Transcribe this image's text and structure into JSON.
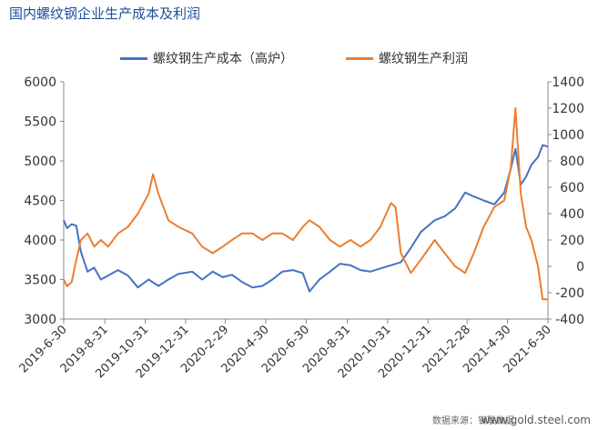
{
  "chart_data": {
    "type": "line",
    "title": "国内螺纹钢企业生产成本及利润",
    "x_ticks": [
      "2019-6-30",
      "2019-8-31",
      "2019-10-31",
      "2019-12-31",
      "2020-2-29",
      "2020-4-30",
      "2020-6-30",
      "2020-8-31",
      "2020-10-31",
      "2020-12-31",
      "2021-2-28",
      "2021-4-30",
      "2021-6-30"
    ],
    "y_left": {
      "min": 3000,
      "max": 6000,
      "ticks": [
        3000,
        3500,
        4000,
        4500,
        5000,
        5500,
        6000
      ]
    },
    "y_right": {
      "min": -400,
      "max": 1400,
      "ticks": [
        -400,
        -200,
        0,
        200,
        400,
        600,
        800,
        1000,
        1200,
        1400
      ]
    },
    "series": [
      {
        "name": "螺纹钢生产成本（高炉）",
        "axis": "left",
        "color": "#4472c4",
        "points": [
          [
            "2019-6-30",
            4250
          ],
          [
            "2019-7-5",
            4150
          ],
          [
            "2019-7-12",
            4200
          ],
          [
            "2019-7-19",
            4180
          ],
          [
            "2019-7-26",
            3850
          ],
          [
            "2019-8-5",
            3600
          ],
          [
            "2019-8-15",
            3650
          ],
          [
            "2019-8-25",
            3500
          ],
          [
            "2019-9-5",
            3550
          ],
          [
            "2019-9-20",
            3620
          ],
          [
            "2019-10-5",
            3550
          ],
          [
            "2019-10-20",
            3400
          ],
          [
            "2019-11-5",
            3500
          ],
          [
            "2019-11-20",
            3420
          ],
          [
            "2019-12-5",
            3500
          ],
          [
            "2019-12-20",
            3570
          ],
          [
            "2020-1-10",
            3600
          ],
          [
            "2020-1-25",
            3500
          ],
          [
            "2020-2-10",
            3600
          ],
          [
            "2020-2-25",
            3530
          ],
          [
            "2020-3-10",
            3560
          ],
          [
            "2020-3-25",
            3470
          ],
          [
            "2020-4-10",
            3400
          ],
          [
            "2020-4-25",
            3420
          ],
          [
            "2020-5-10",
            3500
          ],
          [
            "2020-5-25",
            3600
          ],
          [
            "2020-6-10",
            3620
          ],
          [
            "2020-6-25",
            3580
          ],
          [
            "2020-7-5",
            3350
          ],
          [
            "2020-7-20",
            3500
          ],
          [
            "2020-8-5",
            3600
          ],
          [
            "2020-8-20",
            3700
          ],
          [
            "2020-9-5",
            3680
          ],
          [
            "2020-9-20",
            3620
          ],
          [
            "2020-10-5",
            3600
          ],
          [
            "2020-10-20",
            3640
          ],
          [
            "2020-11-5",
            3680
          ],
          [
            "2020-11-20",
            3720
          ],
          [
            "2020-12-5",
            3900
          ],
          [
            "2020-12-20",
            4100
          ],
          [
            "2021-1-10",
            4250
          ],
          [
            "2021-1-25",
            4300
          ],
          [
            "2021-2-10",
            4400
          ],
          [
            "2021-2-25",
            4600
          ],
          [
            "2021-3-10",
            4550
          ],
          [
            "2021-3-25",
            4500
          ],
          [
            "2021-4-10",
            4450
          ],
          [
            "2021-4-25",
            4600
          ],
          [
            "2021-5-5",
            4900
          ],
          [
            "2021-5-12",
            5150
          ],
          [
            "2021-5-20",
            4700
          ],
          [
            "2021-5-28",
            4800
          ],
          [
            "2021-6-5",
            4950
          ],
          [
            "2021-6-15",
            5050
          ],
          [
            "2021-6-22",
            5200
          ],
          [
            "2021-6-30",
            5180
          ]
        ]
      },
      {
        "name": "螺纹钢生产利润",
        "axis": "right",
        "color": "#ed7d31",
        "points": [
          [
            "2019-6-30",
            -100
          ],
          [
            "2019-7-5",
            -150
          ],
          [
            "2019-7-12",
            -120
          ],
          [
            "2019-7-19",
            50
          ],
          [
            "2019-7-26",
            200
          ],
          [
            "2019-8-5",
            250
          ],
          [
            "2019-8-15",
            150
          ],
          [
            "2019-8-25",
            200
          ],
          [
            "2019-9-5",
            150
          ],
          [
            "2019-9-20",
            250
          ],
          [
            "2019-10-5",
            300
          ],
          [
            "2019-10-20",
            400
          ],
          [
            "2019-11-5",
            550
          ],
          [
            "2019-11-12",
            700
          ],
          [
            "2019-11-20",
            550
          ],
          [
            "2019-12-5",
            350
          ],
          [
            "2019-12-20",
            300
          ],
          [
            "2020-1-10",
            250
          ],
          [
            "2020-1-25",
            150
          ],
          [
            "2020-2-10",
            100
          ],
          [
            "2020-2-25",
            150
          ],
          [
            "2020-3-10",
            200
          ],
          [
            "2020-3-25",
            250
          ],
          [
            "2020-4-10",
            250
          ],
          [
            "2020-4-25",
            200
          ],
          [
            "2020-5-10",
            250
          ],
          [
            "2020-5-25",
            250
          ],
          [
            "2020-6-10",
            200
          ],
          [
            "2020-6-25",
            300
          ],
          [
            "2020-7-5",
            350
          ],
          [
            "2020-7-20",
            300
          ],
          [
            "2020-8-5",
            200
          ],
          [
            "2020-8-20",
            150
          ],
          [
            "2020-9-5",
            200
          ],
          [
            "2020-9-20",
            150
          ],
          [
            "2020-10-5",
            200
          ],
          [
            "2020-10-20",
            300
          ],
          [
            "2020-11-5",
            480
          ],
          [
            "2020-11-12",
            450
          ],
          [
            "2020-11-20",
            100
          ],
          [
            "2020-12-5",
            -50
          ],
          [
            "2020-12-20",
            50
          ],
          [
            "2021-1-10",
            200
          ],
          [
            "2021-1-25",
            100
          ],
          [
            "2021-2-10",
            0
          ],
          [
            "2021-2-25",
            -50
          ],
          [
            "2021-3-10",
            100
          ],
          [
            "2021-3-25",
            300
          ],
          [
            "2021-4-10",
            450
          ],
          [
            "2021-4-25",
            500
          ],
          [
            "2021-5-5",
            750
          ],
          [
            "2021-5-12",
            1200
          ],
          [
            "2021-5-20",
            550
          ],
          [
            "2021-5-28",
            300
          ],
          [
            "2021-6-5",
            200
          ],
          [
            "2021-6-15",
            0
          ],
          [
            "2021-6-22",
            -250
          ],
          [
            "2021-6-30",
            -250
          ]
        ]
      }
    ],
    "legend_position": "top",
    "grid": false
  },
  "footer": {
    "source": "数据来源：钢联数据",
    "site": "www.gold.steel.com"
  }
}
